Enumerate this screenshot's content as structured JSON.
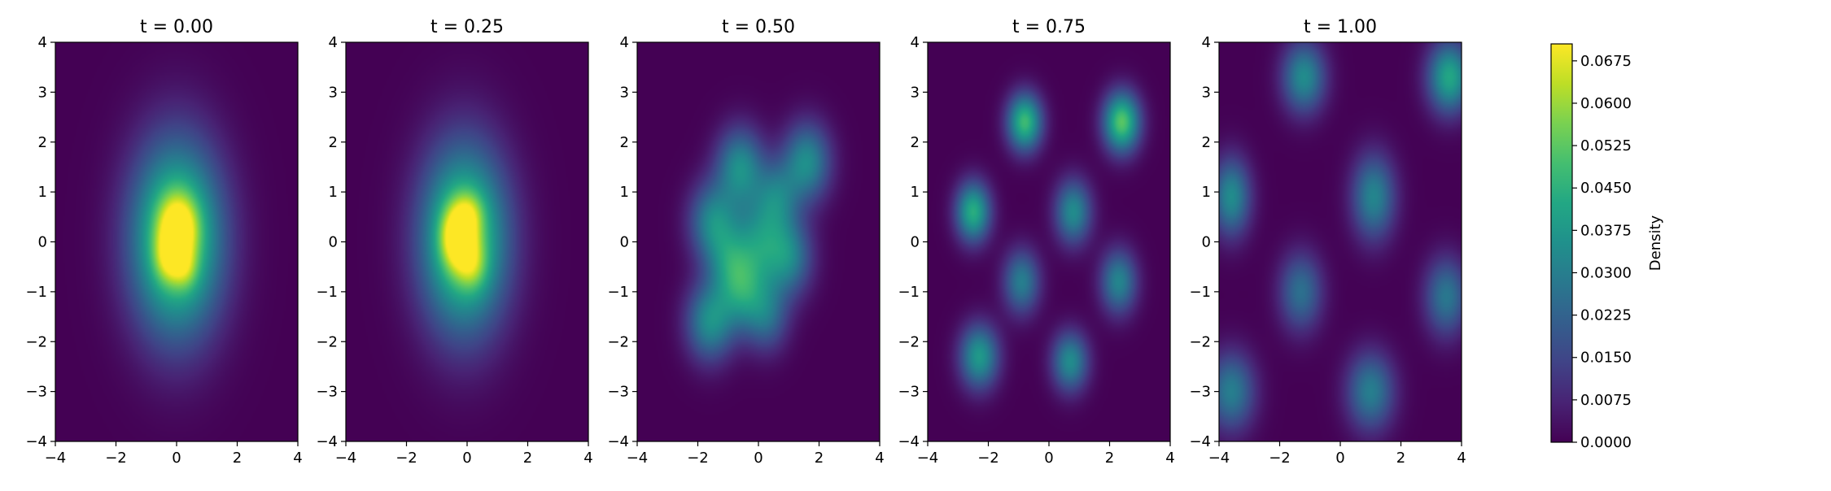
{
  "chart_data": {
    "type": "heatmap",
    "colormap": "viridis",
    "panels": [
      {
        "title": "t = 0.00",
        "xlim": [
          -4,
          4
        ],
        "ylim": [
          -4,
          4
        ],
        "xticks": [
          "−4",
          "−2",
          "0",
          "2",
          "4"
        ],
        "yticks": [
          "−4",
          "−3",
          "−2",
          "−1",
          "0",
          "1",
          "2",
          "3",
          "4"
        ],
        "blobs": [
          {
            "cx": 0.0,
            "cy": 0.05,
            "sx": 1.05,
            "sy": 1.35,
            "amp": 0.06
          },
          {
            "cx": 0.05,
            "cy": 0.3,
            "sx": 0.45,
            "sy": 0.45,
            "amp": 0.03
          },
          {
            "cx": -0.25,
            "cy": -0.35,
            "sx": 0.35,
            "sy": 0.35,
            "amp": 0.018
          },
          {
            "cx": 0.3,
            "cy": -0.55,
            "sx": 0.3,
            "sy": 0.3,
            "amp": 0.012
          }
        ]
      },
      {
        "title": "t = 0.25",
        "xlim": [
          -4,
          4
        ],
        "ylim": [
          -4,
          4
        ],
        "xticks": [
          "−4",
          "−2",
          "0",
          "2",
          "4"
        ],
        "yticks": [
          "−4",
          "−3",
          "−2",
          "−1",
          "0",
          "1",
          "2",
          "3",
          "4"
        ],
        "blobs": [
          {
            "cx": -0.1,
            "cy": 0.05,
            "sx": 1.0,
            "sy": 1.3,
            "amp": 0.058
          },
          {
            "cx": -0.3,
            "cy": 0.1,
            "sx": 0.4,
            "sy": 0.45,
            "amp": 0.035
          },
          {
            "cx": 0.2,
            "cy": -0.5,
            "sx": 0.35,
            "sy": 0.35,
            "amp": 0.014
          },
          {
            "cx": 0.1,
            "cy": 0.6,
            "sx": 0.35,
            "sy": 0.3,
            "amp": 0.012
          }
        ]
      },
      {
        "title": "t = 0.50",
        "xlim": [
          -4,
          4
        ],
        "ylim": [
          -4,
          4
        ],
        "xticks": [
          "−4",
          "−2",
          "0",
          "2",
          "4"
        ],
        "yticks": [
          "−4",
          "−3",
          "−2",
          "−1",
          "0",
          "1",
          "2",
          "3",
          "4"
        ],
        "blobs": [
          {
            "cx": -1.6,
            "cy": -1.6,
            "sx": 0.55,
            "sy": 0.55,
            "amp": 0.034
          },
          {
            "cx": -1.5,
            "cy": 0.4,
            "sx": 0.55,
            "sy": 0.55,
            "amp": 0.032
          },
          {
            "cx": -0.6,
            "cy": 1.5,
            "sx": 0.55,
            "sy": 0.55,
            "amp": 0.034
          },
          {
            "cx": 1.6,
            "cy": 1.6,
            "sx": 0.55,
            "sy": 0.55,
            "amp": 0.034
          },
          {
            "cx": 0.0,
            "cy": 0.0,
            "sx": 0.6,
            "sy": 0.6,
            "amp": 0.028
          },
          {
            "cx": -0.5,
            "cy": -1.0,
            "sx": 0.55,
            "sy": 0.55,
            "amp": 0.03
          },
          {
            "cx": 1.0,
            "cy": -0.3,
            "sx": 0.55,
            "sy": 0.55,
            "amp": 0.03
          },
          {
            "cx": 0.6,
            "cy": 0.9,
            "sx": 0.5,
            "sy": 0.5,
            "amp": 0.024
          },
          {
            "cx": 0.3,
            "cy": -1.5,
            "sx": 0.5,
            "sy": 0.5,
            "amp": 0.022
          },
          {
            "cx": -1.0,
            "cy": -0.4,
            "sx": 0.5,
            "sy": 0.5,
            "amp": 0.02
          }
        ]
      },
      {
        "title": "t = 0.75",
        "xlim": [
          -4,
          4
        ],
        "ylim": [
          -4,
          4
        ],
        "xticks": [
          "−4",
          "−2",
          "0",
          "2",
          "4"
        ],
        "yticks": [
          "−4",
          "−3",
          "−2",
          "−1",
          "0",
          "1",
          "2",
          "3",
          "4"
        ],
        "blobs": [
          {
            "cx": -0.8,
            "cy": 2.4,
            "sx": 0.4,
            "sy": 0.4,
            "amp": 0.048
          },
          {
            "cx": 2.4,
            "cy": 2.4,
            "sx": 0.42,
            "sy": 0.42,
            "amp": 0.052
          },
          {
            "cx": -2.5,
            "cy": 0.6,
            "sx": 0.4,
            "sy": 0.42,
            "amp": 0.044
          },
          {
            "cx": 0.8,
            "cy": 0.6,
            "sx": 0.42,
            "sy": 0.45,
            "amp": 0.034
          },
          {
            "cx": -0.9,
            "cy": -0.8,
            "sx": 0.42,
            "sy": 0.45,
            "amp": 0.03
          },
          {
            "cx": 2.3,
            "cy": -0.8,
            "sx": 0.42,
            "sy": 0.45,
            "amp": 0.032
          },
          {
            "cx": -2.3,
            "cy": -2.3,
            "sx": 0.45,
            "sy": 0.45,
            "amp": 0.038
          },
          {
            "cx": 0.7,
            "cy": -2.4,
            "sx": 0.42,
            "sy": 0.42,
            "amp": 0.034
          }
        ]
      },
      {
        "title": "t = 1.00",
        "xlim": [
          -4,
          4
        ],
        "ylim": [
          -4,
          4
        ],
        "xticks": [
          "−4",
          "−2",
          "0",
          "2",
          "4"
        ],
        "yticks": [
          "−4",
          "−3",
          "−2",
          "−1",
          "0",
          "1",
          "2",
          "3",
          "4"
        ],
        "blobs": [
          {
            "cx": -1.2,
            "cy": 3.3,
            "sx": 0.5,
            "sy": 0.5,
            "amp": 0.034
          },
          {
            "cx": 3.6,
            "cy": 3.3,
            "sx": 0.5,
            "sy": 0.5,
            "amp": 0.042
          },
          {
            "cx": -3.6,
            "cy": 0.9,
            "sx": 0.45,
            "sy": 0.55,
            "amp": 0.034
          },
          {
            "cx": 1.1,
            "cy": 0.9,
            "sx": 0.5,
            "sy": 0.6,
            "amp": 0.032
          },
          {
            "cx": -1.3,
            "cy": -1.0,
            "sx": 0.5,
            "sy": 0.55,
            "amp": 0.026
          },
          {
            "cx": 3.5,
            "cy": -1.1,
            "sx": 0.5,
            "sy": 0.55,
            "amp": 0.028
          },
          {
            "cx": -3.6,
            "cy": -3.0,
            "sx": 0.55,
            "sy": 0.55,
            "amp": 0.03
          },
          {
            "cx": 1.0,
            "cy": -3.0,
            "sx": 0.55,
            "sy": 0.55,
            "amp": 0.03
          }
        ]
      }
    ],
    "colorbar": {
      "label": "Density",
      "vmin": 0.0,
      "vmax": 0.0705,
      "ticks": [
        "0.0000",
        "0.0075",
        "0.0150",
        "0.0225",
        "0.0300",
        "0.0375",
        "0.0450",
        "0.0525",
        "0.0600",
        "0.0675"
      ]
    }
  }
}
